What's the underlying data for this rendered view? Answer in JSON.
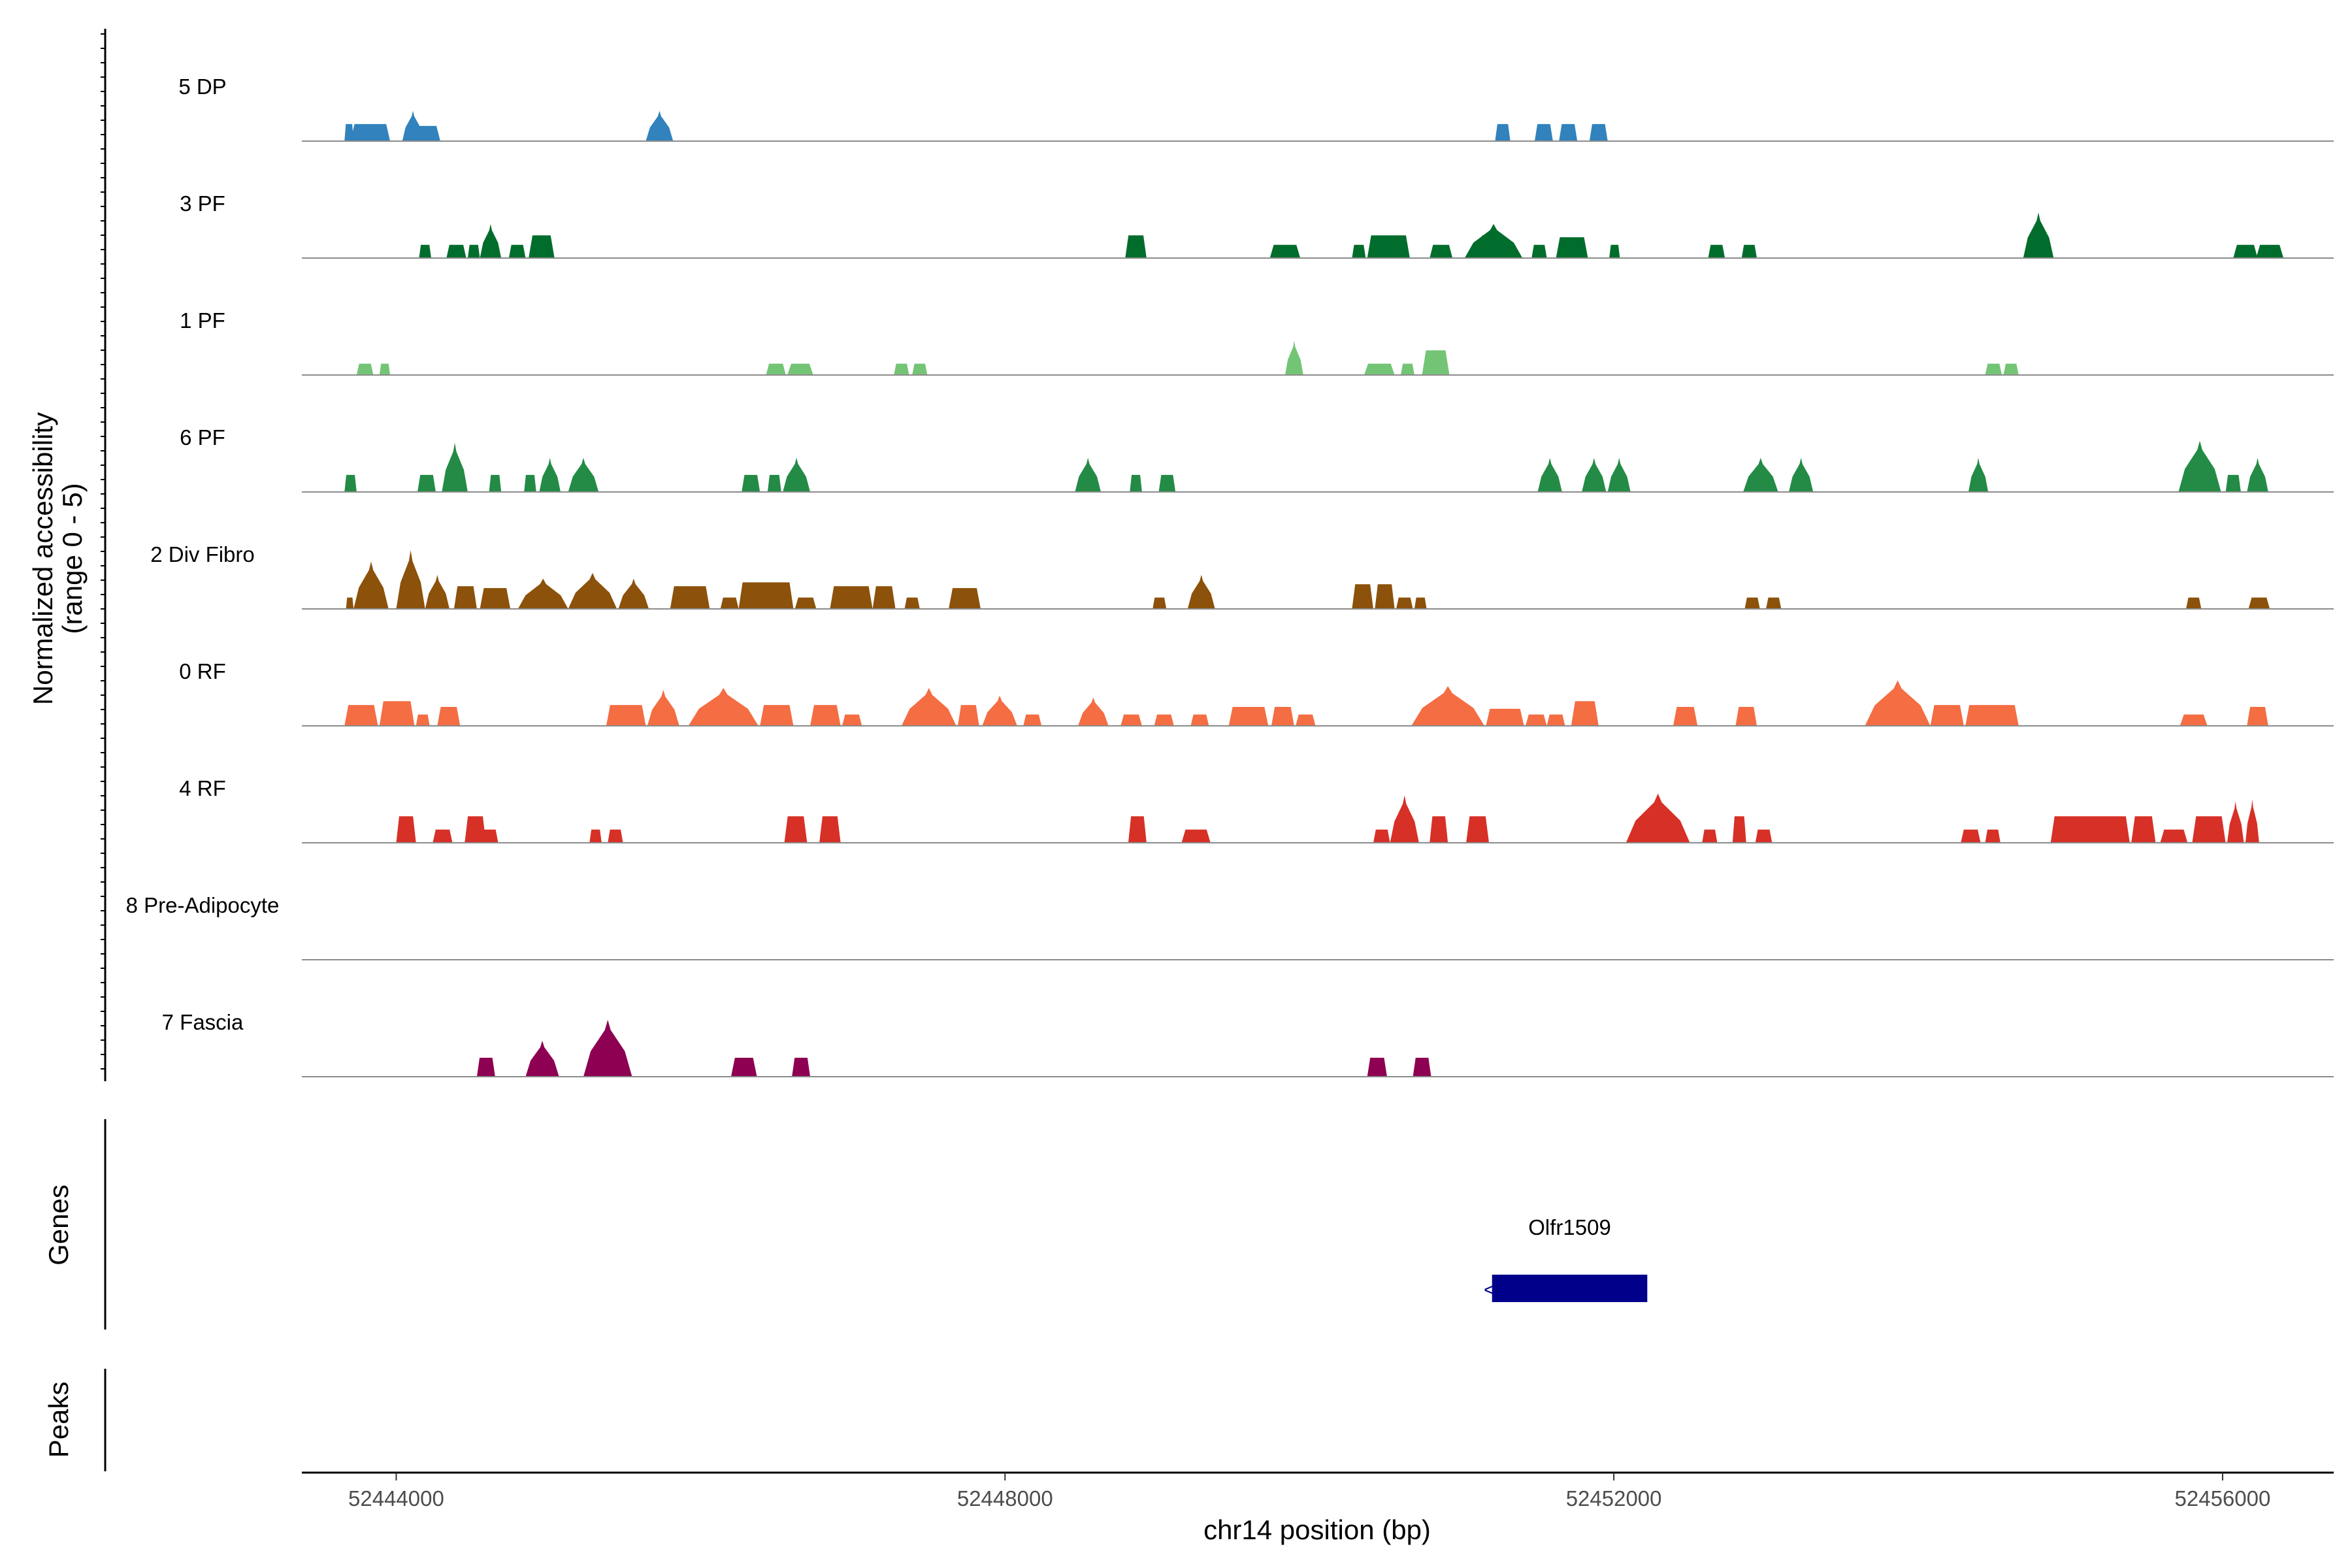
{
  "chart_data": {
    "type": "area",
    "title": "",
    "xlabel": "chr14 position (bp)",
    "ylabel": "Normalized accessibility (range 0 - 5)",
    "ylabel_lines": [
      "Normalized accessibility",
      "(range 0 - 5)"
    ],
    "xlim": [
      52443380,
      52456730
    ],
    "ylim": [
      0,
      5
    ],
    "x_ticks": [
      {
        "value": 52444000,
        "label": "52444000"
      },
      {
        "value": 52448000,
        "label": "52448000"
      },
      {
        "value": 52452000,
        "label": "52452000"
      },
      {
        "value": 52456000,
        "label": "52456000"
      }
    ],
    "series": [
      {
        "name": "5 DP",
        "color": "#3182bd",
        "peaks": [
          [
            52443660,
            52443720,
            0.9
          ],
          [
            52443700,
            52443960,
            0.9
          ],
          [
            52444040,
            52444180,
            1.6
          ],
          [
            52444070,
            52444290,
            0.8
          ],
          [
            52445640,
            52445820,
            1.6
          ],
          [
            52451220,
            52451320,
            0.9
          ],
          [
            52451480,
            52451600,
            0.9
          ],
          [
            52451640,
            52451760,
            0.9
          ],
          [
            52451840,
            52451960,
            0.9
          ]
        ]
      },
      {
        "name": "3 PF",
        "color": "#006d2c",
        "peaks": [
          [
            52444150,
            52444230,
            0.7
          ],
          [
            52444330,
            52444460,
            0.7
          ],
          [
            52444470,
            52444550,
            0.7
          ],
          [
            52444550,
            52444690,
            1.8
          ],
          [
            52444740,
            52444850,
            0.7
          ],
          [
            52444870,
            52445040,
            1.2
          ],
          [
            52448790,
            52448930,
            1.2
          ],
          [
            52449740,
            52449940,
            0.7
          ],
          [
            52450280,
            52450370,
            0.7
          ],
          [
            52450380,
            52450660,
            1.2
          ],
          [
            52450790,
            52450940,
            0.7
          ],
          [
            52451020,
            52451400,
            1.8
          ],
          [
            52451110,
            52451300,
            1.2
          ],
          [
            52451460,
            52451560,
            0.7
          ],
          [
            52451620,
            52451830,
            1.1
          ],
          [
            52451970,
            52452040,
            0.7
          ],
          [
            52452620,
            52452730,
            0.7
          ],
          [
            52452840,
            52452940,
            0.7
          ],
          [
            52454690,
            52454890,
            2.4
          ],
          [
            52456070,
            52456230,
            0.7
          ],
          [
            52456220,
            52456400,
            0.7
          ]
        ]
      },
      {
        "name": "1 PF",
        "color": "#74c476",
        "peaks": [
          [
            52443740,
            52443850,
            0.6
          ],
          [
            52443890,
            52443960,
            0.6
          ],
          [
            52446430,
            52446560,
            0.6
          ],
          [
            52446570,
            52446740,
            0.6
          ],
          [
            52447270,
            52447370,
            0.6
          ],
          [
            52447390,
            52447490,
            0.6
          ],
          [
            52449840,
            52449960,
            1.8
          ],
          [
            52450360,
            52450560,
            0.6
          ],
          [
            52450600,
            52450690,
            0.6
          ],
          [
            52450740,
            52450920,
            1.3
          ],
          [
            52454440,
            52454550,
            0.6
          ],
          [
            52454560,
            52454660,
            0.6
          ]
        ]
      },
      {
        "name": "6 PF",
        "color": "#238b45",
        "peaks": [
          [
            52443660,
            52443740,
            0.9
          ],
          [
            52444140,
            52444260,
            0.9
          ],
          [
            52444300,
            52444470,
            2.6
          ],
          [
            52444610,
            52444690,
            0.9
          ],
          [
            52444840,
            52444920,
            0.9
          ],
          [
            52444940,
            52445080,
            1.8
          ],
          [
            52445130,
            52445330,
            1.8
          ],
          [
            52446270,
            52446390,
            0.9
          ],
          [
            52446440,
            52446530,
            0.9
          ],
          [
            52446540,
            52446720,
            1.8
          ],
          [
            52448460,
            52448630,
            1.8
          ],
          [
            52448820,
            52448900,
            0.9
          ],
          [
            52449010,
            52449120,
            0.9
          ],
          [
            52451500,
            52451660,
            1.8
          ],
          [
            52451790,
            52451950,
            1.8
          ],
          [
            52451960,
            52452110,
            1.8
          ],
          [
            52452850,
            52453080,
            1.8
          ],
          [
            52453150,
            52453310,
            1.8
          ],
          [
            52454330,
            52454460,
            1.8
          ],
          [
            52455710,
            52455990,
            2.7
          ],
          [
            52456020,
            52456120,
            0.9
          ],
          [
            52456160,
            52456300,
            1.8
          ]
        ]
      },
      {
        "name": "2 Div Fibro",
        "color": "#8c510a",
        "peaks": [
          [
            52443670,
            52443720,
            0.6
          ],
          [
            52443720,
            52443950,
            2.5
          ],
          [
            52444000,
            52444190,
            3.1
          ],
          [
            52444190,
            52444350,
            1.8
          ],
          [
            52444380,
            52444530,
            1.2
          ],
          [
            52444550,
            52444750,
            1.1
          ],
          [
            52444800,
            52445130,
            1.6
          ],
          [
            52445130,
            52445450,
            1.9
          ],
          [
            52445460,
            52445660,
            1.6
          ],
          [
            52445800,
            52446060,
            1.2
          ],
          [
            52446130,
            52446250,
            0.6
          ],
          [
            52446250,
            52446610,
            1.4
          ],
          [
            52446620,
            52446760,
            0.6
          ],
          [
            52446850,
            52447130,
            1.2
          ],
          [
            52447130,
            52447280,
            1.2
          ],
          [
            52447340,
            52447440,
            0.6
          ],
          [
            52447630,
            52447840,
            1.1
          ],
          [
            52448970,
            52449060,
            0.6
          ],
          [
            52449200,
            52449380,
            1.8
          ],
          [
            52450280,
            52450420,
            1.3
          ],
          [
            52450430,
            52450560,
            1.3
          ],
          [
            52450570,
            52450680,
            0.6
          ],
          [
            52450690,
            52450770,
            0.6
          ],
          [
            52452860,
            52452960,
            0.6
          ],
          [
            52453000,
            52453100,
            0.6
          ],
          [
            52455760,
            52455860,
            0.6
          ],
          [
            52456170,
            52456310,
            0.6
          ]
        ]
      },
      {
        "name": "0 RF",
        "color": "#f46d43",
        "peaks": [
          [
            52443660,
            52443880,
            1.1
          ],
          [
            52443890,
            52444120,
            1.3
          ],
          [
            52444130,
            52444220,
            0.6
          ],
          [
            52444270,
            52444420,
            1.0
          ],
          [
            52445380,
            52445640,
            1.1
          ],
          [
            52445650,
            52445860,
            1.9
          ],
          [
            52445920,
            52446380,
            2.0
          ],
          [
            52446390,
            52446610,
            1.1
          ],
          [
            52446720,
            52446920,
            1.1
          ],
          [
            52446930,
            52447060,
            0.6
          ],
          [
            52447320,
            52447680,
            2.0
          ],
          [
            52447690,
            52447830,
            1.1
          ],
          [
            52447850,
            52448080,
            1.6
          ],
          [
            52448120,
            52448240,
            0.6
          ],
          [
            52448480,
            52448680,
            1.5
          ],
          [
            52448760,
            52448900,
            0.6
          ],
          [
            52448980,
            52449110,
            0.6
          ],
          [
            52449220,
            52449340,
            0.6
          ],
          [
            52449470,
            52449730,
            1.0
          ],
          [
            52449750,
            52449900,
            1.0
          ],
          [
            52449910,
            52450040,
            0.6
          ],
          [
            52450670,
            52451150,
            2.1
          ],
          [
            52451160,
            52451410,
            0.9
          ],
          [
            52451420,
            52451560,
            0.6
          ],
          [
            52451560,
            52451680,
            0.6
          ],
          [
            52451720,
            52451900,
            1.3
          ],
          [
            52452390,
            52452550,
            1.0
          ],
          [
            52452800,
            52452940,
            1.0
          ],
          [
            52453650,
            52454080,
            2.4
          ],
          [
            52454080,
            52454300,
            1.1
          ],
          [
            52454310,
            52454660,
            1.1
          ],
          [
            52455720,
            52455900,
            0.6
          ],
          [
            52456160,
            52456300,
            1.0
          ]
        ]
      },
      {
        "name": "4 RF",
        "color": "#d73027",
        "peaks": [
          [
            52444000,
            52444130,
            1.4
          ],
          [
            52444240,
            52444370,
            0.7
          ],
          [
            52444450,
            52444590,
            1.4
          ],
          [
            52444560,
            52444670,
            0.7
          ],
          [
            52445270,
            52445350,
            0.7
          ],
          [
            52445390,
            52445490,
            0.7
          ],
          [
            52446550,
            52446700,
            1.4
          ],
          [
            52446780,
            52446920,
            1.4
          ],
          [
            52448810,
            52448930,
            1.4
          ],
          [
            52449160,
            52449350,
            0.7
          ],
          [
            52450420,
            52450530,
            0.7
          ],
          [
            52450530,
            52450720,
            2.5
          ],
          [
            52450790,
            52450910,
            1.4
          ],
          [
            52451030,
            52451180,
            1.4
          ],
          [
            52452080,
            52452500,
            2.6
          ],
          [
            52452580,
            52452680,
            0.7
          ],
          [
            52452780,
            52452870,
            1.4
          ],
          [
            52452930,
            52453040,
            0.7
          ],
          [
            52454280,
            52454410,
            0.7
          ],
          [
            52454440,
            52454540,
            0.7
          ],
          [
            52454870,
            52455390,
            1.4
          ],
          [
            52455400,
            52455560,
            1.4
          ],
          [
            52455590,
            52455770,
            0.7
          ],
          [
            52455800,
            52456020,
            1.4
          ],
          [
            52456030,
            52456140,
            2.2
          ],
          [
            52456150,
            52456240,
            2.3
          ]
        ]
      },
      {
        "name": "8 Pre-Adipocyte",
        "color": "#66c2a5",
        "peaks": []
      },
      {
        "name": "7 Fascia",
        "color": "#8e0152",
        "peaks": [
          [
            52444530,
            52444650,
            1.0
          ],
          [
            52444850,
            52445070,
            1.9
          ],
          [
            52445230,
            52445550,
            3.0
          ],
          [
            52446200,
            52446370,
            1.0
          ],
          [
            52446600,
            52446720,
            1.0
          ],
          [
            52450380,
            52450510,
            1.0
          ],
          [
            52450680,
            52450800,
            1.0
          ]
        ]
      }
    ],
    "genes": [
      {
        "name": "Olfr1509",
        "start": 52451200,
        "end": 52452220,
        "strand": "-",
        "color": "#00008b"
      }
    ],
    "genes_track_label": "Genes",
    "peaks_track_label": "Peaks",
    "peak_regions": []
  }
}
